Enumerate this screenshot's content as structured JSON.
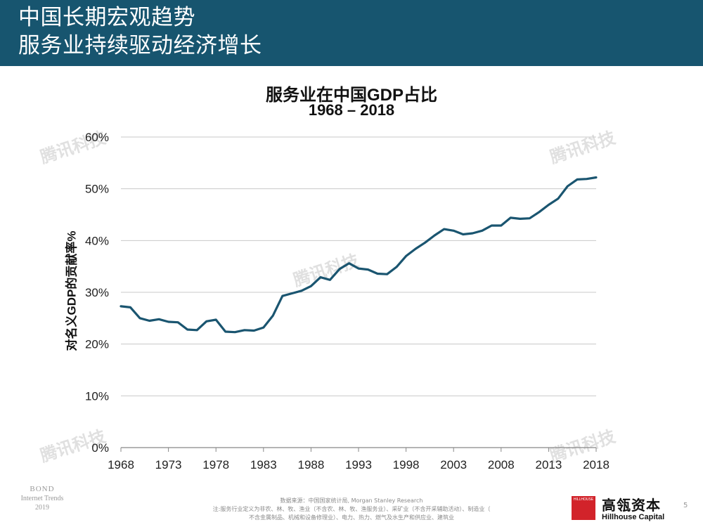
{
  "header": {
    "title_line1": "中国长期宏观趋势",
    "title_line2": "服务业持续驱动经济增长"
  },
  "chart_data": {
    "type": "line",
    "title": "服务业在中国GDP占比",
    "subtitle": "1968 – 2018",
    "xlabel": "",
    "ylabel": "对名义GDP的贡献率%",
    "xlim": [
      1968,
      2018
    ],
    "ylim": [
      0,
      60
    ],
    "x_ticks": [
      "1968",
      "1973",
      "1978",
      "1983",
      "1988",
      "1993",
      "1998",
      "2003",
      "2008",
      "2013",
      "2018"
    ],
    "y_ticks": [
      "0%",
      "10%",
      "20%",
      "30%",
      "40%",
      "50%",
      "60%"
    ],
    "grid": true,
    "color": "#1a5570",
    "series": [
      {
        "x": [
          1968,
          1969,
          1970,
          1971,
          1972,
          1973,
          1974,
          1975,
          1976,
          1977,
          1978,
          1979,
          1980,
          1981,
          1982,
          1983,
          1984,
          1985,
          1986,
          1987,
          1988,
          1989,
          1990,
          1991,
          1992,
          1993,
          1994,
          1995,
          1996,
          1997,
          1998,
          1999,
          2000,
          2001,
          2002,
          2003,
          2004,
          2005,
          2006,
          2007,
          2008,
          2009,
          2010,
          2011,
          2012,
          2013,
          2014,
          2015,
          2016,
          2017,
          2018
        ],
        "values": [
          27.3,
          27.1,
          25.0,
          24.5,
          24.8,
          24.3,
          24.2,
          22.8,
          22.7,
          24.4,
          24.7,
          22.4,
          22.3,
          22.7,
          22.6,
          23.2,
          25.5,
          29.3,
          29.8,
          30.3,
          31.2,
          32.9,
          32.4,
          34.5,
          35.6,
          34.6,
          34.4,
          33.6,
          33.5,
          34.9,
          37.0,
          38.4,
          39.6,
          41.0,
          42.2,
          41.9,
          41.2,
          41.4,
          41.9,
          42.9,
          42.9,
          44.4,
          44.2,
          44.3,
          45.5,
          46.9,
          48.1,
          50.5,
          51.8,
          51.9,
          52.2
        ]
      }
    ]
  },
  "watermark": "腾讯科技",
  "footer": {
    "bond_line1": "BOND",
    "bond_line2": "Internet Trends",
    "bond_line3": "2019",
    "source_line1": "数据来源：中国国家统计局, Morgan Stanley Research",
    "source_line2": "注:服务行业定义为非农、林、牧、渔业（不含农、林、牧、渔服务业）、采矿业（不含开采辅助活动）、制造业（",
    "source_line3": "不含金属制品、机械和设备修理业）、电力、热力、燃气及水生产和供应业、建筑业",
    "logo_text": "HILLHOUSE",
    "brand_cn": "高瓴资本",
    "brand_en": "Hillhouse Capital",
    "page": "5"
  }
}
